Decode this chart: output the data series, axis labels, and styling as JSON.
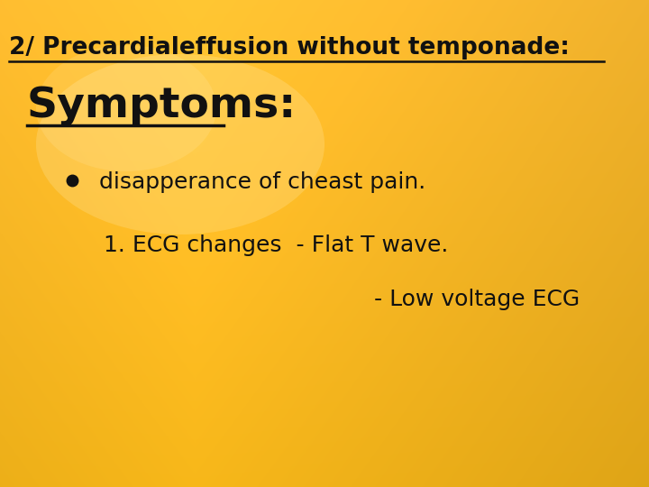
{
  "title_text": "2/ Precardialeffusion without temponade:",
  "subtitle_text": "Symptoms:",
  "bullet_text": "disapperance of cheast pain.",
  "line1_text": "1. ECG changes  - Flat T wave.",
  "line2_text": "- Low voltage ECG",
  "text_color": "#111111",
  "title_fontsize": 19,
  "subtitle_fontsize": 34,
  "body_fontsize": 18,
  "figwidth": 7.2,
  "figheight": 5.4,
  "dpi": 100
}
